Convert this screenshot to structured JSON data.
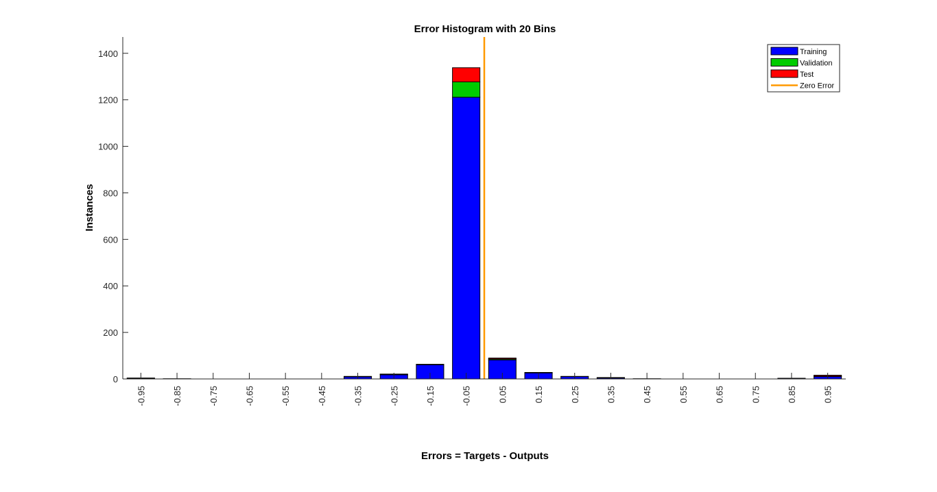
{
  "chart_data": {
    "type": "bar",
    "stacked": true,
    "title": "Error Histogram with 20 Bins",
    "xlabel": "Errors = Targets - Outputs",
    "ylabel": "Instances",
    "categories": [
      "-0.95",
      "-0.85",
      "-0.75",
      "-0.65",
      "-0.55",
      "-0.45",
      "-0.35",
      "-0.25",
      "-0.15",
      "-0.05",
      "0.05",
      "0.15",
      "0.25",
      "0.35",
      "0.45",
      "0.55",
      "0.65",
      "0.75",
      "0.85",
      "0.95"
    ],
    "series": [
      {
        "name": "Training",
        "color": "#0000ff",
        "values": [
          3,
          1,
          0,
          0,
          0,
          0,
          9,
          18,
          61,
          1211,
          82,
          26,
          10,
          4,
          1,
          0,
          0,
          0,
          3,
          10
        ]
      },
      {
        "name": "Validation",
        "color": "#00cc00",
        "values": [
          0,
          0,
          0,
          0,
          0,
          0,
          1,
          2,
          1,
          66,
          4,
          1,
          1,
          1,
          0,
          0,
          0,
          0,
          0,
          2
        ]
      },
      {
        "name": "Test",
        "color": "#ff0000",
        "values": [
          1,
          0,
          0,
          0,
          0,
          0,
          1,
          1,
          1,
          61,
          4,
          1,
          0,
          1,
          0,
          0,
          0,
          0,
          0,
          4
        ]
      }
    ],
    "zero_error": {
      "name": "Zero Error",
      "color": "#ff9900",
      "x": 0
    },
    "ylim": [
      0,
      1470
    ],
    "yticks": [
      0,
      200,
      400,
      600,
      800,
      1000,
      1200,
      1400
    ],
    "grid": false,
    "legend_position": "top-right"
  }
}
